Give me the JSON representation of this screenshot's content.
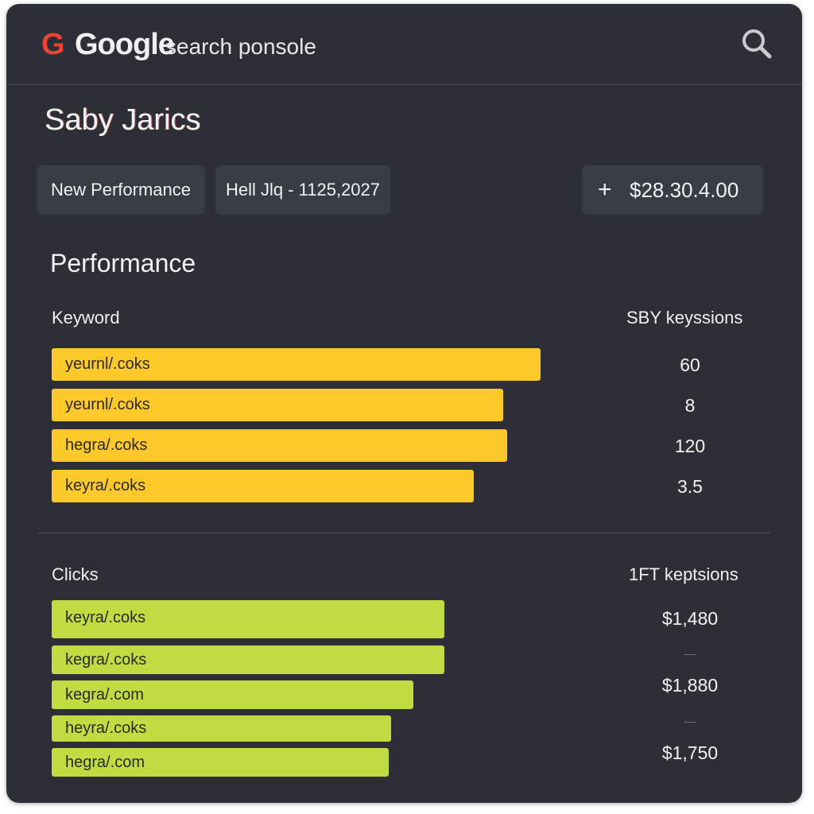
{
  "header": {
    "logo_g": "G",
    "logo_text": "Google",
    "logo_sub": "search ponsole",
    "search_icon": "search-icon"
  },
  "site_title": "Saby Jarics",
  "chips": {
    "new_performance": "New Performance",
    "date_range": "Hell Jlq - 1125,2027",
    "amount_plus": "+",
    "amount": "$28.30.4.00"
  },
  "performance": {
    "title": "Performance",
    "keyword_header": "Keyword",
    "keyword_value_header": "SBY keyssions",
    "keyword_rows": [
      {
        "label": "yeurnl/.coks",
        "value": "60",
        "fill": 0.614
      },
      {
        "label": "yeurnl/.coks",
        "value": "8",
        "fill": 0.567
      },
      {
        "label": "hegra/.coks",
        "value": "120",
        "fill": 0.572
      },
      {
        "label": "keyra/.coks",
        "value": "3.5",
        "fill": 0.53
      }
    ],
    "clicks_header": "Clicks",
    "clicks_value_header": "1FT keptsions",
    "clicks_rows": [
      {
        "label": "keyra/.coks",
        "fill": 0.494
      },
      {
        "label": "kegra/.coks",
        "fill": 0.494
      },
      {
        "label": "kegra/.com",
        "fill": 0.455
      },
      {
        "label": "heyra/.coks",
        "fill": 0.427
      },
      {
        "label": "hegra/.com",
        "fill": 0.424
      }
    ],
    "clicks_values": [
      "$1,480",
      "$1,880",
      "$1,750"
    ]
  },
  "colors": {
    "panel_bg": "#2c2f36",
    "chip_bg": "#383c44",
    "keyword_bar": "#fcc82a",
    "clicks_bar": "#bfdc43",
    "google_g": "#ea4335"
  }
}
